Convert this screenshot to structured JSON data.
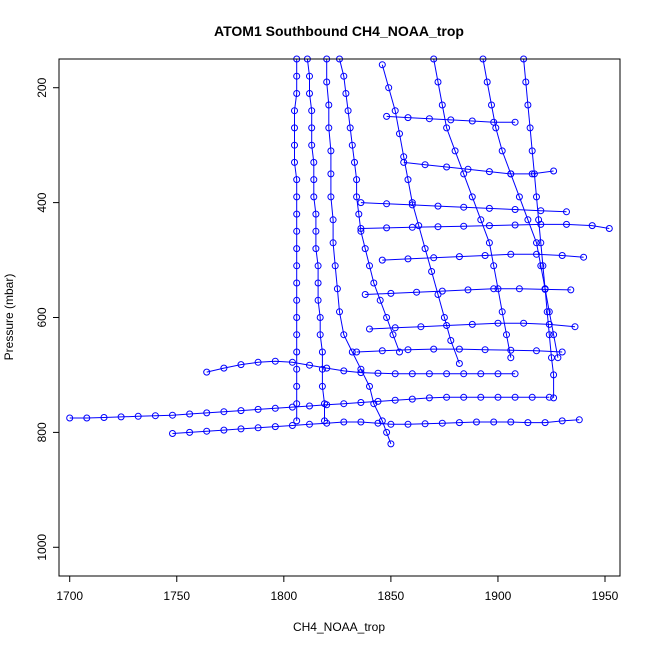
{
  "chart_data": {
    "type": "scatter",
    "title": "ATOM1 Southbound CH4_NOAA_trop",
    "xlabel": "CH4_NOAA_trop",
    "ylabel": "Pressure (mbar)",
    "xlim": [
      1695,
      1957
    ],
    "ylim": [
      1050,
      150
    ],
    "y_reversed": true,
    "x_ticks": [
      1700,
      1750,
      1800,
      1850,
      1900,
      1950
    ],
    "y_ticks": [
      200,
      400,
      600,
      800,
      1000
    ],
    "marker": "open-circle",
    "connect_points": true,
    "color": "#0000ff",
    "grid": false,
    "legend": "none",
    "series": [
      {
        "points": [
          [
            1700,
            775
          ],
          [
            1708,
            775
          ],
          [
            1716,
            774
          ],
          [
            1724,
            773
          ],
          [
            1732,
            772
          ],
          [
            1740,
            771
          ],
          [
            1748,
            770
          ],
          [
            1756,
            768
          ],
          [
            1764,
            766
          ],
          [
            1772,
            764
          ],
          [
            1780,
            762
          ],
          [
            1788,
            760
          ],
          [
            1796,
            758
          ],
          [
            1804,
            756
          ],
          [
            1812,
            754
          ],
          [
            1820,
            752
          ],
          [
            1828,
            750
          ],
          [
            1836,
            748
          ],
          [
            1844,
            746
          ],
          [
            1852,
            744
          ],
          [
            1860,
            742
          ],
          [
            1868,
            740
          ],
          [
            1876,
            739
          ],
          [
            1884,
            739
          ],
          [
            1892,
            739
          ],
          [
            1900,
            739
          ],
          [
            1908,
            739
          ],
          [
            1916,
            739
          ],
          [
            1924,
            739
          ]
        ]
      },
      {
        "points": [
          [
            1748,
            802
          ],
          [
            1756,
            800
          ],
          [
            1764,
            798
          ],
          [
            1772,
            796
          ],
          [
            1780,
            794
          ],
          [
            1788,
            792
          ],
          [
            1796,
            790
          ],
          [
            1804,
            788
          ],
          [
            1812,
            786
          ],
          [
            1820,
            784
          ],
          [
            1828,
            782
          ],
          [
            1836,
            782
          ],
          [
            1844,
            784
          ],
          [
            1850,
            786
          ],
          [
            1858,
            786
          ],
          [
            1866,
            785
          ],
          [
            1874,
            784
          ],
          [
            1882,
            783
          ],
          [
            1890,
            782
          ],
          [
            1898,
            782
          ],
          [
            1906,
            782
          ],
          [
            1914,
            783
          ],
          [
            1922,
            783
          ],
          [
            1930,
            780
          ],
          [
            1938,
            778
          ]
        ]
      },
      {
        "points": [
          [
            1764,
            695
          ],
          [
            1772,
            688
          ],
          [
            1780,
            682
          ],
          [
            1788,
            678
          ],
          [
            1796,
            676
          ],
          [
            1804,
            678
          ],
          [
            1812,
            683
          ],
          [
            1820,
            688
          ],
          [
            1828,
            693
          ],
          [
            1836,
            696
          ],
          [
            1844,
            697
          ],
          [
            1852,
            698
          ],
          [
            1860,
            698
          ],
          [
            1868,
            698
          ],
          [
            1876,
            698
          ],
          [
            1884,
            698
          ],
          [
            1892,
            698
          ],
          [
            1900,
            698
          ],
          [
            1908,
            698
          ]
        ]
      },
      {
        "points": [
          [
            1806,
            150
          ],
          [
            1806,
            180
          ],
          [
            1806,
            210
          ],
          [
            1805,
            240
          ],
          [
            1805,
            270
          ],
          [
            1805,
            300
          ],
          [
            1805,
            330
          ],
          [
            1806,
            360
          ],
          [
            1806,
            390
          ],
          [
            1806,
            420
          ],
          [
            1806,
            450
          ],
          [
            1806,
            480
          ],
          [
            1806,
            510
          ],
          [
            1806,
            540
          ],
          [
            1806,
            570
          ],
          [
            1806,
            600
          ],
          [
            1806,
            630
          ],
          [
            1806,
            660
          ],
          [
            1806,
            690
          ],
          [
            1806,
            720
          ],
          [
            1806,
            750
          ],
          [
            1806,
            780
          ]
        ]
      },
      {
        "points": [
          [
            1811,
            150
          ],
          [
            1812,
            180
          ],
          [
            1812,
            210
          ],
          [
            1813,
            240
          ],
          [
            1813,
            270
          ],
          [
            1813,
            300
          ],
          [
            1814,
            330
          ],
          [
            1814,
            360
          ],
          [
            1814,
            390
          ],
          [
            1815,
            420
          ],
          [
            1815,
            450
          ],
          [
            1815,
            480
          ],
          [
            1816,
            510
          ],
          [
            1816,
            540
          ],
          [
            1816,
            570
          ],
          [
            1817,
            600
          ],
          [
            1817,
            630
          ],
          [
            1818,
            660
          ],
          [
            1818,
            690
          ],
          [
            1818,
            720
          ],
          [
            1819,
            750
          ],
          [
            1819,
            780
          ]
        ]
      },
      {
        "points": [
          [
            1820,
            150
          ],
          [
            1820,
            190
          ],
          [
            1821,
            230
          ],
          [
            1821,
            270
          ],
          [
            1822,
            310
          ],
          [
            1822,
            350
          ],
          [
            1822,
            390
          ],
          [
            1823,
            430
          ],
          [
            1823,
            470
          ],
          [
            1824,
            510
          ],
          [
            1825,
            550
          ],
          [
            1826,
            590
          ],
          [
            1828,
            630
          ],
          [
            1832,
            660
          ],
          [
            1836,
            690
          ],
          [
            1840,
            720
          ],
          [
            1842,
            750
          ],
          [
            1846,
            780
          ],
          [
            1848,
            800
          ],
          [
            1850,
            820
          ]
        ]
      },
      {
        "points": [
          [
            1826,
            150
          ],
          [
            1828,
            180
          ],
          [
            1829,
            210
          ],
          [
            1830,
            240
          ],
          [
            1831,
            270
          ],
          [
            1832,
            300
          ],
          [
            1833,
            330
          ],
          [
            1834,
            360
          ],
          [
            1834,
            390
          ],
          [
            1835,
            420
          ],
          [
            1836,
            450
          ],
          [
            1838,
            480
          ],
          [
            1840,
            510
          ],
          [
            1842,
            540
          ],
          [
            1845,
            570
          ],
          [
            1848,
            600
          ],
          [
            1851,
            630
          ],
          [
            1854,
            660
          ]
        ]
      },
      {
        "points": [
          [
            1846,
            160
          ],
          [
            1849,
            200
          ],
          [
            1852,
            240
          ],
          [
            1854,
            280
          ],
          [
            1856,
            320
          ],
          [
            1858,
            360
          ],
          [
            1860,
            400
          ],
          [
            1863,
            440
          ],
          [
            1866,
            480
          ],
          [
            1869,
            520
          ],
          [
            1872,
            560
          ],
          [
            1875,
            600
          ],
          [
            1878,
            640
          ],
          [
            1882,
            680
          ]
        ]
      },
      {
        "points": [
          [
            1870,
            150
          ],
          [
            1872,
            190
          ],
          [
            1874,
            230
          ],
          [
            1876,
            270
          ],
          [
            1880,
            310
          ],
          [
            1884,
            350
          ],
          [
            1888,
            390
          ],
          [
            1892,
            430
          ],
          [
            1896,
            470
          ],
          [
            1898,
            510
          ],
          [
            1900,
            550
          ],
          [
            1902,
            590
          ],
          [
            1904,
            630
          ],
          [
            1906,
            670
          ]
        ]
      },
      {
        "points": [
          [
            1893,
            150
          ],
          [
            1895,
            190
          ],
          [
            1897,
            230
          ],
          [
            1899,
            270
          ],
          [
            1902,
            310
          ],
          [
            1906,
            350
          ],
          [
            1910,
            390
          ],
          [
            1914,
            430
          ],
          [
            1918,
            470
          ],
          [
            1920,
            510
          ],
          [
            1922,
            550
          ],
          [
            1924,
            590
          ],
          [
            1926,
            630
          ],
          [
            1928,
            670
          ]
        ]
      },
      {
        "points": [
          [
            1912,
            150
          ],
          [
            1913,
            190
          ],
          [
            1914,
            230
          ],
          [
            1915,
            270
          ],
          [
            1916,
            310
          ],
          [
            1917,
            350
          ],
          [
            1918,
            390
          ],
          [
            1919,
            430
          ],
          [
            1920,
            470
          ],
          [
            1921,
            510
          ],
          [
            1922,
            550
          ],
          [
            1923,
            590
          ],
          [
            1924,
            630
          ],
          [
            1925,
            670
          ],
          [
            1926,
            700
          ],
          [
            1926,
            740
          ]
        ]
      },
      {
        "points": [
          [
            1836,
            445
          ],
          [
            1848,
            444
          ],
          [
            1860,
            443
          ],
          [
            1872,
            442
          ],
          [
            1884,
            441
          ],
          [
            1896,
            440
          ],
          [
            1908,
            439
          ],
          [
            1920,
            438
          ],
          [
            1932,
            438
          ],
          [
            1944,
            440
          ],
          [
            1952,
            445
          ]
        ]
      },
      {
        "points": [
          [
            1846,
            500
          ],
          [
            1858,
            498
          ],
          [
            1870,
            496
          ],
          [
            1882,
            494
          ],
          [
            1894,
            492
          ],
          [
            1906,
            490
          ],
          [
            1918,
            490
          ],
          [
            1930,
            492
          ],
          [
            1940,
            495
          ]
        ]
      },
      {
        "points": [
          [
            1838,
            560
          ],
          [
            1850,
            558
          ],
          [
            1862,
            556
          ],
          [
            1874,
            554
          ],
          [
            1886,
            552
          ],
          [
            1898,
            550
          ],
          [
            1910,
            550
          ],
          [
            1922,
            551
          ],
          [
            1934,
            552
          ]
        ]
      },
      {
        "points": [
          [
            1856,
            330
          ],
          [
            1866,
            334
          ],
          [
            1876,
            338
          ],
          [
            1886,
            342
          ],
          [
            1896,
            346
          ],
          [
            1906,
            350
          ],
          [
            1916,
            350
          ],
          [
            1926,
            345
          ]
        ]
      },
      {
        "points": [
          [
            1840,
            620
          ],
          [
            1852,
            618
          ],
          [
            1864,
            616
          ],
          [
            1876,
            614
          ],
          [
            1888,
            612
          ],
          [
            1900,
            610
          ],
          [
            1912,
            610
          ],
          [
            1924,
            612
          ],
          [
            1936,
            616
          ]
        ]
      },
      {
        "points": [
          [
            1834,
            660
          ],
          [
            1846,
            658
          ],
          [
            1858,
            656
          ],
          [
            1870,
            655
          ],
          [
            1882,
            655
          ],
          [
            1894,
            656
          ],
          [
            1906,
            657
          ],
          [
            1918,
            658
          ],
          [
            1930,
            660
          ]
        ]
      },
      {
        "points": [
          [
            1848,
            250
          ],
          [
            1858,
            252
          ],
          [
            1868,
            254
          ],
          [
            1878,
            256
          ],
          [
            1888,
            258
          ],
          [
            1898,
            260
          ],
          [
            1908,
            260
          ]
        ]
      },
      {
        "points": [
          [
            1836,
            400
          ],
          [
            1848,
            402
          ],
          [
            1860,
            404
          ],
          [
            1872,
            406
          ],
          [
            1884,
            408
          ],
          [
            1896,
            410
          ],
          [
            1908,
            412
          ],
          [
            1920,
            414
          ],
          [
            1932,
            416
          ]
        ]
      }
    ]
  }
}
